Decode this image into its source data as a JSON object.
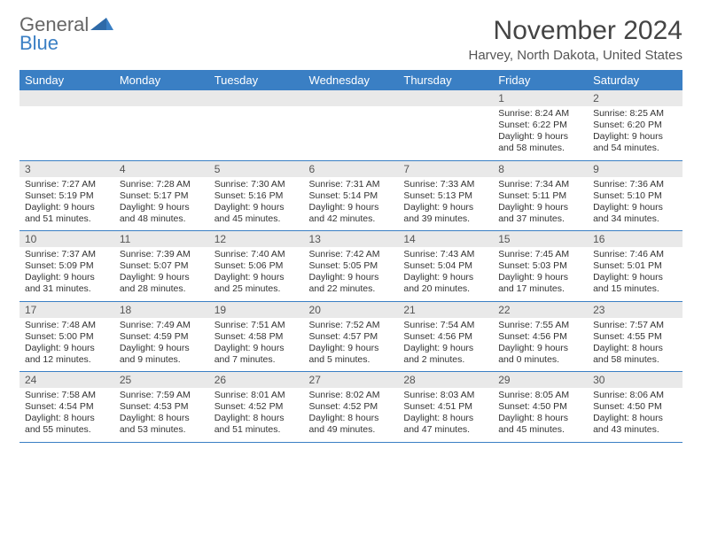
{
  "logo": {
    "line1": "General",
    "line2": "Blue"
  },
  "title": "November 2024",
  "location": "Harvey, North Dakota, United States",
  "colors": {
    "header_bg": "#3a7fc4",
    "header_fg": "#ffffff",
    "daynum_bg": "#e9e9e9",
    "border": "#3a7fc4",
    "text": "#333333",
    "logo_gray": "#666666",
    "logo_blue": "#3a7fc4"
  },
  "day_headers": [
    "Sunday",
    "Monday",
    "Tuesday",
    "Wednesday",
    "Thursday",
    "Friday",
    "Saturday"
  ],
  "weeks": [
    [
      {
        "n": "",
        "sunrise": "",
        "sunset": "",
        "daylight": ""
      },
      {
        "n": "",
        "sunrise": "",
        "sunset": "",
        "daylight": ""
      },
      {
        "n": "",
        "sunrise": "",
        "sunset": "",
        "daylight": ""
      },
      {
        "n": "",
        "sunrise": "",
        "sunset": "",
        "daylight": ""
      },
      {
        "n": "",
        "sunrise": "",
        "sunset": "",
        "daylight": ""
      },
      {
        "n": "1",
        "sunrise": "Sunrise: 8:24 AM",
        "sunset": "Sunset: 6:22 PM",
        "daylight": "Daylight: 9 hours and 58 minutes."
      },
      {
        "n": "2",
        "sunrise": "Sunrise: 8:25 AM",
        "sunset": "Sunset: 6:20 PM",
        "daylight": "Daylight: 9 hours and 54 minutes."
      }
    ],
    [
      {
        "n": "3",
        "sunrise": "Sunrise: 7:27 AM",
        "sunset": "Sunset: 5:19 PM",
        "daylight": "Daylight: 9 hours and 51 minutes."
      },
      {
        "n": "4",
        "sunrise": "Sunrise: 7:28 AM",
        "sunset": "Sunset: 5:17 PM",
        "daylight": "Daylight: 9 hours and 48 minutes."
      },
      {
        "n": "5",
        "sunrise": "Sunrise: 7:30 AM",
        "sunset": "Sunset: 5:16 PM",
        "daylight": "Daylight: 9 hours and 45 minutes."
      },
      {
        "n": "6",
        "sunrise": "Sunrise: 7:31 AM",
        "sunset": "Sunset: 5:14 PM",
        "daylight": "Daylight: 9 hours and 42 minutes."
      },
      {
        "n": "7",
        "sunrise": "Sunrise: 7:33 AM",
        "sunset": "Sunset: 5:13 PM",
        "daylight": "Daylight: 9 hours and 39 minutes."
      },
      {
        "n": "8",
        "sunrise": "Sunrise: 7:34 AM",
        "sunset": "Sunset: 5:11 PM",
        "daylight": "Daylight: 9 hours and 37 minutes."
      },
      {
        "n": "9",
        "sunrise": "Sunrise: 7:36 AM",
        "sunset": "Sunset: 5:10 PM",
        "daylight": "Daylight: 9 hours and 34 minutes."
      }
    ],
    [
      {
        "n": "10",
        "sunrise": "Sunrise: 7:37 AM",
        "sunset": "Sunset: 5:09 PM",
        "daylight": "Daylight: 9 hours and 31 minutes."
      },
      {
        "n": "11",
        "sunrise": "Sunrise: 7:39 AM",
        "sunset": "Sunset: 5:07 PM",
        "daylight": "Daylight: 9 hours and 28 minutes."
      },
      {
        "n": "12",
        "sunrise": "Sunrise: 7:40 AM",
        "sunset": "Sunset: 5:06 PM",
        "daylight": "Daylight: 9 hours and 25 minutes."
      },
      {
        "n": "13",
        "sunrise": "Sunrise: 7:42 AM",
        "sunset": "Sunset: 5:05 PM",
        "daylight": "Daylight: 9 hours and 22 minutes."
      },
      {
        "n": "14",
        "sunrise": "Sunrise: 7:43 AM",
        "sunset": "Sunset: 5:04 PM",
        "daylight": "Daylight: 9 hours and 20 minutes."
      },
      {
        "n": "15",
        "sunrise": "Sunrise: 7:45 AM",
        "sunset": "Sunset: 5:03 PM",
        "daylight": "Daylight: 9 hours and 17 minutes."
      },
      {
        "n": "16",
        "sunrise": "Sunrise: 7:46 AM",
        "sunset": "Sunset: 5:01 PM",
        "daylight": "Daylight: 9 hours and 15 minutes."
      }
    ],
    [
      {
        "n": "17",
        "sunrise": "Sunrise: 7:48 AM",
        "sunset": "Sunset: 5:00 PM",
        "daylight": "Daylight: 9 hours and 12 minutes."
      },
      {
        "n": "18",
        "sunrise": "Sunrise: 7:49 AM",
        "sunset": "Sunset: 4:59 PM",
        "daylight": "Daylight: 9 hours and 9 minutes."
      },
      {
        "n": "19",
        "sunrise": "Sunrise: 7:51 AM",
        "sunset": "Sunset: 4:58 PM",
        "daylight": "Daylight: 9 hours and 7 minutes."
      },
      {
        "n": "20",
        "sunrise": "Sunrise: 7:52 AM",
        "sunset": "Sunset: 4:57 PM",
        "daylight": "Daylight: 9 hours and 5 minutes."
      },
      {
        "n": "21",
        "sunrise": "Sunrise: 7:54 AM",
        "sunset": "Sunset: 4:56 PM",
        "daylight": "Daylight: 9 hours and 2 minutes."
      },
      {
        "n": "22",
        "sunrise": "Sunrise: 7:55 AM",
        "sunset": "Sunset: 4:56 PM",
        "daylight": "Daylight: 9 hours and 0 minutes."
      },
      {
        "n": "23",
        "sunrise": "Sunrise: 7:57 AM",
        "sunset": "Sunset: 4:55 PM",
        "daylight": "Daylight: 8 hours and 58 minutes."
      }
    ],
    [
      {
        "n": "24",
        "sunrise": "Sunrise: 7:58 AM",
        "sunset": "Sunset: 4:54 PM",
        "daylight": "Daylight: 8 hours and 55 minutes."
      },
      {
        "n": "25",
        "sunrise": "Sunrise: 7:59 AM",
        "sunset": "Sunset: 4:53 PM",
        "daylight": "Daylight: 8 hours and 53 minutes."
      },
      {
        "n": "26",
        "sunrise": "Sunrise: 8:01 AM",
        "sunset": "Sunset: 4:52 PM",
        "daylight": "Daylight: 8 hours and 51 minutes."
      },
      {
        "n": "27",
        "sunrise": "Sunrise: 8:02 AM",
        "sunset": "Sunset: 4:52 PM",
        "daylight": "Daylight: 8 hours and 49 minutes."
      },
      {
        "n": "28",
        "sunrise": "Sunrise: 8:03 AM",
        "sunset": "Sunset: 4:51 PM",
        "daylight": "Daylight: 8 hours and 47 minutes."
      },
      {
        "n": "29",
        "sunrise": "Sunrise: 8:05 AM",
        "sunset": "Sunset: 4:50 PM",
        "daylight": "Daylight: 8 hours and 45 minutes."
      },
      {
        "n": "30",
        "sunrise": "Sunrise: 8:06 AM",
        "sunset": "Sunset: 4:50 PM",
        "daylight": "Daylight: 8 hours and 43 minutes."
      }
    ]
  ]
}
